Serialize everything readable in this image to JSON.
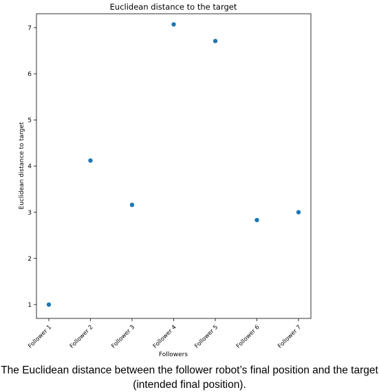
{
  "chart_data": {
    "type": "scatter",
    "title": "Euclidean distance to the target",
    "xlabel": "Followers",
    "ylabel": "Euclidean distance to target",
    "categories": [
      "Follower 1",
      "Follower 2",
      "Follower 3",
      "Follower 4",
      "Follower 5",
      "Follower 6",
      "Follower 7"
    ],
    "values": [
      1.0,
      4.12,
      3.16,
      7.07,
      6.71,
      2.83,
      3.0
    ],
    "yticks": [
      "1",
      "2",
      "3",
      "4",
      "5",
      "6",
      "7"
    ],
    "ylim": [
      0.7,
      7.3
    ],
    "marker_color": "#1f77b4",
    "grid": false
  },
  "caption": {
    "line1": "The Euclidean distance between the follower robot’s final position and the target",
    "line2": "(intended final position)."
  }
}
